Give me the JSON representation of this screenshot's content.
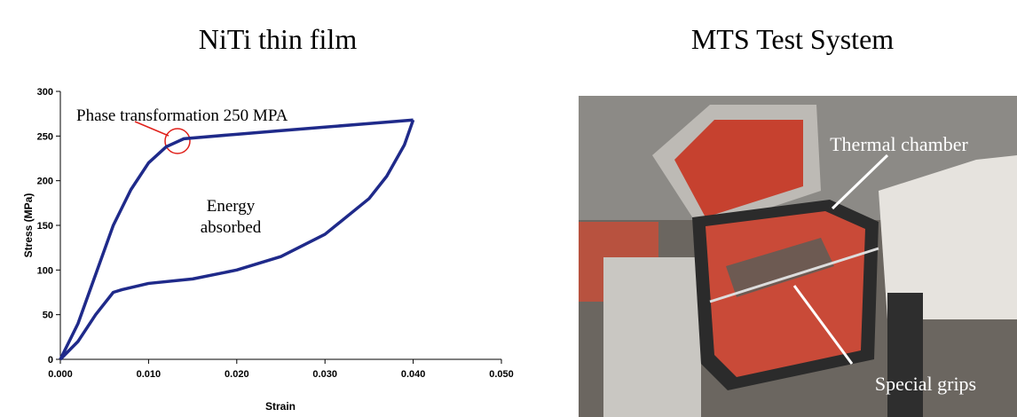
{
  "chart_data": {
    "type": "line",
    "title": "NiTi thin film",
    "x_label": "Strain",
    "y_label": "Stress (MPa)",
    "xlim": [
      0,
      0.05
    ],
    "ylim": [
      0,
      300
    ],
    "xticks": [
      {
        "value": 0,
        "label": "0.000"
      },
      {
        "value": 0.01,
        "label": "0.010"
      },
      {
        "value": 0.02,
        "label": "0.020"
      },
      {
        "value": 0.03,
        "label": "0.030"
      },
      {
        "value": 0.04,
        "label": "0.040"
      },
      {
        "value": 0.05,
        "label": "0.050"
      }
    ],
    "yticks": [
      0,
      50,
      100,
      150,
      200,
      250,
      300
    ],
    "grid": false,
    "series": [
      {
        "color": "#1f2a8a",
        "x": [
          0,
          0.002,
          0.004,
          0.006,
          0.008,
          0.01,
          0.012,
          0.014,
          0.02,
          0.025,
          0.03,
          0.035,
          0.04
        ],
        "values": [
          0,
          40,
          95,
          150,
          190,
          220,
          238,
          247,
          252,
          256,
          260,
          264,
          268
        ]
      },
      {
        "color": "#1f2a8a",
        "x": [
          0.04,
          0.039,
          0.037,
          0.035,
          0.03,
          0.025,
          0.02,
          0.015,
          0.01,
          0.007,
          0.006,
          0.004,
          0.002,
          0
        ],
        "values": [
          268,
          240,
          205,
          180,
          140,
          115,
          100,
          90,
          85,
          78,
          75,
          50,
          20,
          0
        ]
      }
    ],
    "annotations": [
      "Phase transformation 250 MPA",
      "Energy",
      "absorbed"
    ]
  },
  "photo": {
    "title": "MTS Test System",
    "labels": [
      "Thermal chamber",
      "Special grips"
    ]
  }
}
